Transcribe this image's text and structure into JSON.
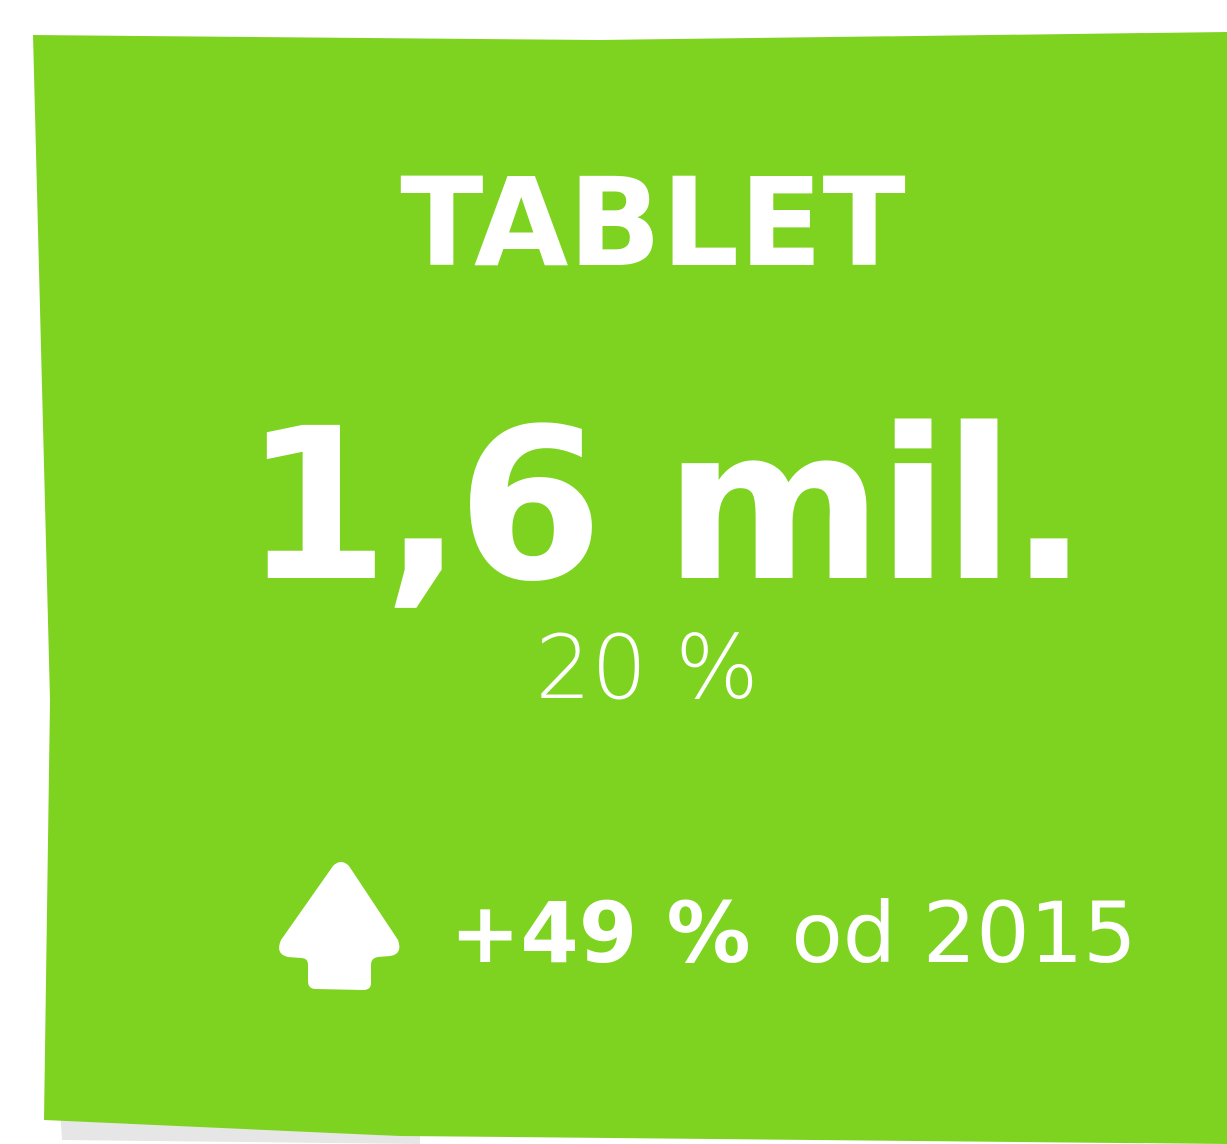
{
  "card": {
    "title": "TABLET",
    "value": "1,6 mil.",
    "share": "20 %",
    "change": {
      "value": "+49 %",
      "since": "od 2015"
    }
  }
}
